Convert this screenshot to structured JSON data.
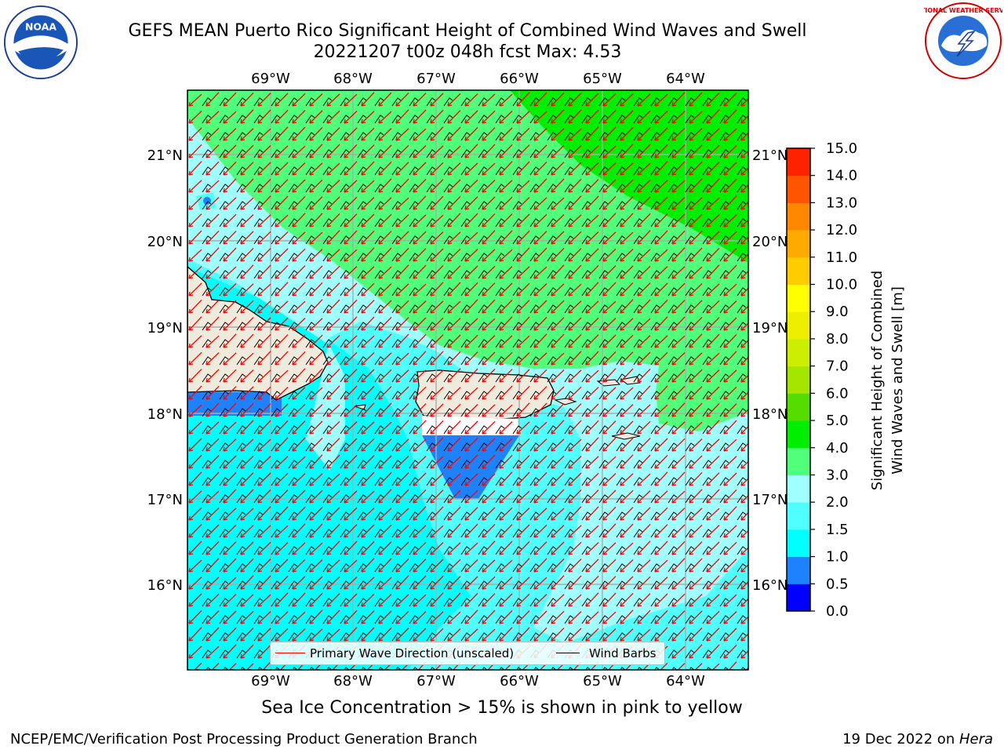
{
  "title": {
    "line1": "GEFS MEAN Puerto Rico Significant Height of Combined Wind Waves and Swell",
    "line2": "20221207 t00z 048h fcst   Max: 4.53"
  },
  "logos": {
    "left": "NOAA",
    "right": "NATIONAL WEATHER SERVICE"
  },
  "map": {
    "lon_labels": [
      "69°W",
      "68°W",
      "67°W",
      "66°W",
      "65°W",
      "64°W"
    ],
    "lat_labels": [
      "21°N",
      "20°N",
      "19°N",
      "18°N",
      "17°N",
      "16°N"
    ]
  },
  "legend": {
    "wave_label": "Primary Wave Direction (unscaled)",
    "barb_label": "Wind Barbs",
    "wave_color": "#ff0000",
    "barb_color": "#000000"
  },
  "colorbar": {
    "label_line1": "Significant Height of Combined",
    "label_line2": "Wind Waves and Swell [m]",
    "ticks": [
      "0.0",
      "0.5",
      "1.0",
      "1.5",
      "2.0",
      "3.0",
      "4.0",
      "5.0",
      "6.0",
      "7.0",
      "8.0",
      "9.0",
      "10.0",
      "11.0",
      "12.0",
      "13.0",
      "14.0",
      "15.0"
    ],
    "colors": [
      "#0000ff",
      "#1e82ff",
      "#00ffff",
      "#50ffff",
      "#a0ffff",
      "#50ff7a",
      "#00ee00",
      "#55dd00",
      "#a5e600",
      "#ccee00",
      "#eeee00",
      "#ffff00",
      "#ffcc00",
      "#ffaa00",
      "#ff8800",
      "#ff5500",
      "#ff2200"
    ]
  },
  "bottom_note": "Sea Ice Concentration > 15% is shown in pink to yellow",
  "footer": {
    "left": "NCEP/EMC/Verification Post Processing Product Generation Branch",
    "right_prefix": "19 Dec 2022 on ",
    "right_host": "Hera"
  }
}
